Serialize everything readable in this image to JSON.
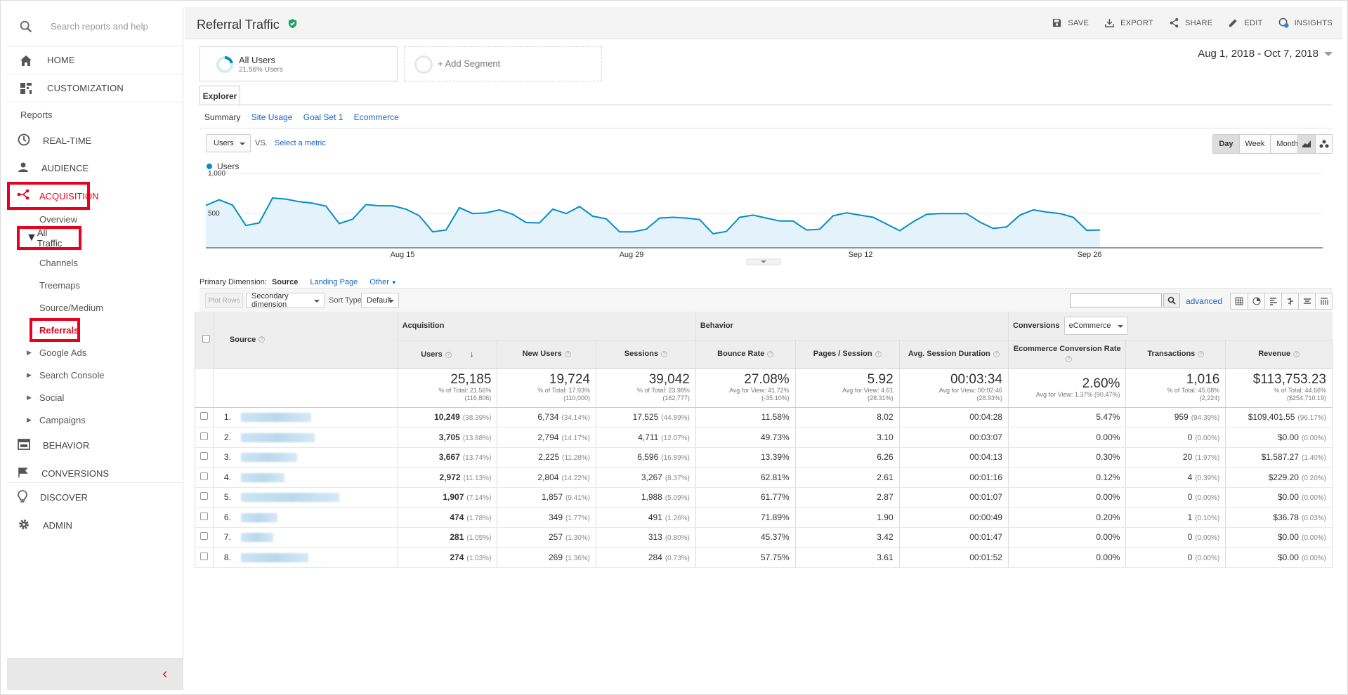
{
  "sidebar": {
    "search_placeholder": "Search reports and help",
    "home": "HOME",
    "customization": "CUSTOMIZATION",
    "reports_label": "Reports",
    "realtime": "REAL-TIME",
    "audience": "AUDIENCE",
    "acquisition": "ACQUISITION",
    "overview": "Overview",
    "all_traffic": "All Traffic",
    "channels": "Channels",
    "treemaps": "Treemaps",
    "source_medium": "Source/Medium",
    "referrals": "Referrals",
    "google_ads": "Google Ads",
    "search_console": "Search Console",
    "social": "Social",
    "campaigns": "Campaigns",
    "behavior": "BEHAVIOR",
    "conversions": "CONVERSIONS",
    "discover": "DISCOVER",
    "admin": "ADMIN",
    "collapse": "‹"
  },
  "header": {
    "title": "Referral Traffic",
    "save": "SAVE",
    "export": "EXPORT",
    "share": "SHARE",
    "edit": "EDIT",
    "insights": "INSIGHTS"
  },
  "segments": {
    "segment1_name": "All Users",
    "segment1_sub": "21.56% Users",
    "add_segment": "+ Add Segment"
  },
  "date_range": "Aug 1, 2018 - Oct 7, 2018",
  "explorer": {
    "tab": "Explorer",
    "subtabs": [
      "Summary",
      "Site Usage",
      "Goal Set 1",
      "Ecommerce"
    ],
    "metric": "Users",
    "vs": "VS.",
    "select_metric": "Select a metric",
    "granularity": [
      "Day",
      "Week",
      "Month"
    ]
  },
  "chart_data": {
    "type": "area",
    "title": "",
    "series": [
      {
        "name": "Users",
        "color": "#058dc7",
        "values": [
          570,
          645,
          575,
          300,
          335,
          670,
          655,
          620,
          600,
          560,
          325,
          385,
          580,
          565,
          565,
          520,
          430,
          215,
          240,
          540,
          460,
          470,
          510,
          450,
          340,
          335,
          520,
          460,
          555,
          425,
          390,
          215,
          215,
          250,
          400,
          410,
          400,
          380,
          190,
          220,
          410,
          440,
          400,
          360,
          360,
          240,
          250,
          430,
          470,
          440,
          410,
          320,
          230,
          350,
          450,
          460,
          460,
          460,
          345,
          260,
          280,
          440,
          510,
          480,
          460,
          410,
          235,
          240
        ]
      }
    ],
    "x_ticks": [
      "Aug 15",
      "Aug 29",
      "Sep 12",
      "Sep 26"
    ],
    "y_ticks": [
      "1,000",
      "500"
    ],
    "ylim": [
      0,
      1000
    ]
  },
  "table_controls": {
    "primary_dimension_label": "Primary Dimension:",
    "primary_dimension": "Source",
    "landing_page": "Landing Page",
    "other": "Other",
    "plot_rows": "Plot Rows",
    "secondary_dimension": "Secondary dimension",
    "sort_type_label": "Sort Type:",
    "sort_type": "Default",
    "advanced": "advanced"
  },
  "table": {
    "groups": {
      "acquisition": "Acquisition",
      "behavior": "Behavior",
      "conversions": "Conversions",
      "conversions_select": "eCommerce"
    },
    "columns": [
      "Source",
      "Users",
      "New Users",
      "Sessions",
      "Bounce Rate",
      "Pages / Session",
      "Avg. Session Duration",
      "Ecommerce Conversion Rate",
      "Transactions",
      "Revenue"
    ],
    "totals": [
      {
        "value": "25,185",
        "sub1": "% of Total: 21.56%",
        "sub2": "(116,806)"
      },
      {
        "value": "19,724",
        "sub1": "% of Total: 17.93%",
        "sub2": "(110,000)"
      },
      {
        "value": "39,042",
        "sub1": "% of Total: 23.98%",
        "sub2": "(162,777)"
      },
      {
        "value": "27.08%",
        "sub1": "Avg for View: 41.72%",
        "sub2": "(-35.10%)"
      },
      {
        "value": "5.92",
        "sub1": "Avg for View: 4.61",
        "sub2": "(28.31%)"
      },
      {
        "value": "00:03:34",
        "sub1": "Avg for View: 00:02:46",
        "sub2": "(28.93%)"
      },
      {
        "value": "2.60%",
        "sub1": "Avg for View: 1.37% (90.47%)",
        "sub2": ""
      },
      {
        "value": "1,016",
        "sub1": "% of Total: 45.68%",
        "sub2": "(2,224)"
      },
      {
        "value": "$113,753.23",
        "sub1": "% of Total: 44.66%",
        "sub2": "($254,710.19)"
      }
    ],
    "rows": [
      {
        "n": "1.",
        "users": "10,249",
        "users_pct": "(38.39%)",
        "new_users": "6,734",
        "new_users_pct": "(34.14%)",
        "sessions": "17,525",
        "sessions_pct": "(44.89%)",
        "bounce": "11.58%",
        "pages": "8.02",
        "duration": "00:04:28",
        "conv": "5.47%",
        "trans": "959",
        "trans_pct": "(94.39%)",
        "revenue": "$109,401.55",
        "revenue_pct": "(96.17%)"
      },
      {
        "n": "2.",
        "users": "3,705",
        "users_pct": "(13.88%)",
        "new_users": "2,794",
        "new_users_pct": "(14.17%)",
        "sessions": "4,711",
        "sessions_pct": "(12.07%)",
        "bounce": "49.73%",
        "pages": "3.10",
        "duration": "00:03:07",
        "conv": "0.00%",
        "trans": "0",
        "trans_pct": "(0.00%)",
        "revenue": "$0.00",
        "revenue_pct": "(0.00%)"
      },
      {
        "n": "3.",
        "users": "3,667",
        "users_pct": "(13.74%)",
        "new_users": "2,225",
        "new_users_pct": "(11.28%)",
        "sessions": "6,596",
        "sessions_pct": "(16.89%)",
        "bounce": "13.39%",
        "pages": "6.26",
        "duration": "00:04:13",
        "conv": "0.30%",
        "trans": "20",
        "trans_pct": "(1.97%)",
        "revenue": "$1,587.27",
        "revenue_pct": "(1.40%)"
      },
      {
        "n": "4.",
        "users": "2,972",
        "users_pct": "(11.13%)",
        "new_users": "2,804",
        "new_users_pct": "(14.22%)",
        "sessions": "3,267",
        "sessions_pct": "(8.37%)",
        "bounce": "62.81%",
        "pages": "2.61",
        "duration": "00:01:16",
        "conv": "0.12%",
        "trans": "4",
        "trans_pct": "(0.39%)",
        "revenue": "$229.20",
        "revenue_pct": "(0.20%)"
      },
      {
        "n": "5.",
        "users": "1,907",
        "users_pct": "(7.14%)",
        "new_users": "1,857",
        "new_users_pct": "(9.41%)",
        "sessions": "1,988",
        "sessions_pct": "(5.09%)",
        "bounce": "61.77%",
        "pages": "2.87",
        "duration": "00:01:07",
        "conv": "0.00%",
        "trans": "0",
        "trans_pct": "(0.00%)",
        "revenue": "$0.00",
        "revenue_pct": "(0.00%)"
      },
      {
        "n": "6.",
        "users": "474",
        "users_pct": "(1.78%)",
        "new_users": "349",
        "new_users_pct": "(1.77%)",
        "sessions": "491",
        "sessions_pct": "(1.26%)",
        "bounce": "71.89%",
        "pages": "1.90",
        "duration": "00:00:49",
        "conv": "0.20%",
        "trans": "1",
        "trans_pct": "(0.10%)",
        "revenue": "$36.78",
        "revenue_pct": "(0.03%)"
      },
      {
        "n": "7.",
        "users": "281",
        "users_pct": "(1.05%)",
        "new_users": "257",
        "new_users_pct": "(1.30%)",
        "sessions": "313",
        "sessions_pct": "(0.80%)",
        "bounce": "45.37%",
        "pages": "3.42",
        "duration": "00:01:47",
        "conv": "0.00%",
        "trans": "0",
        "trans_pct": "(0.00%)",
        "revenue": "$0.00",
        "revenue_pct": "(0.00%)"
      },
      {
        "n": "8.",
        "users": "274",
        "users_pct": "(1.03%)",
        "new_users": "269",
        "new_users_pct": "(1.36%)",
        "sessions": "284",
        "sessions_pct": "(0.73%)",
        "bounce": "57.75%",
        "pages": "3.61",
        "duration": "00:01:52",
        "conv": "0.00%",
        "trans": "0",
        "trans_pct": "(0.00%)",
        "revenue": "$0.00",
        "revenue_pct": "(0.00%)"
      }
    ]
  },
  "colors": {
    "accent": "#e8001c",
    "link": "#1565c0",
    "series": "#058dc7",
    "area_fill": "#e3f2fb",
    "verified": "#1ea362"
  }
}
